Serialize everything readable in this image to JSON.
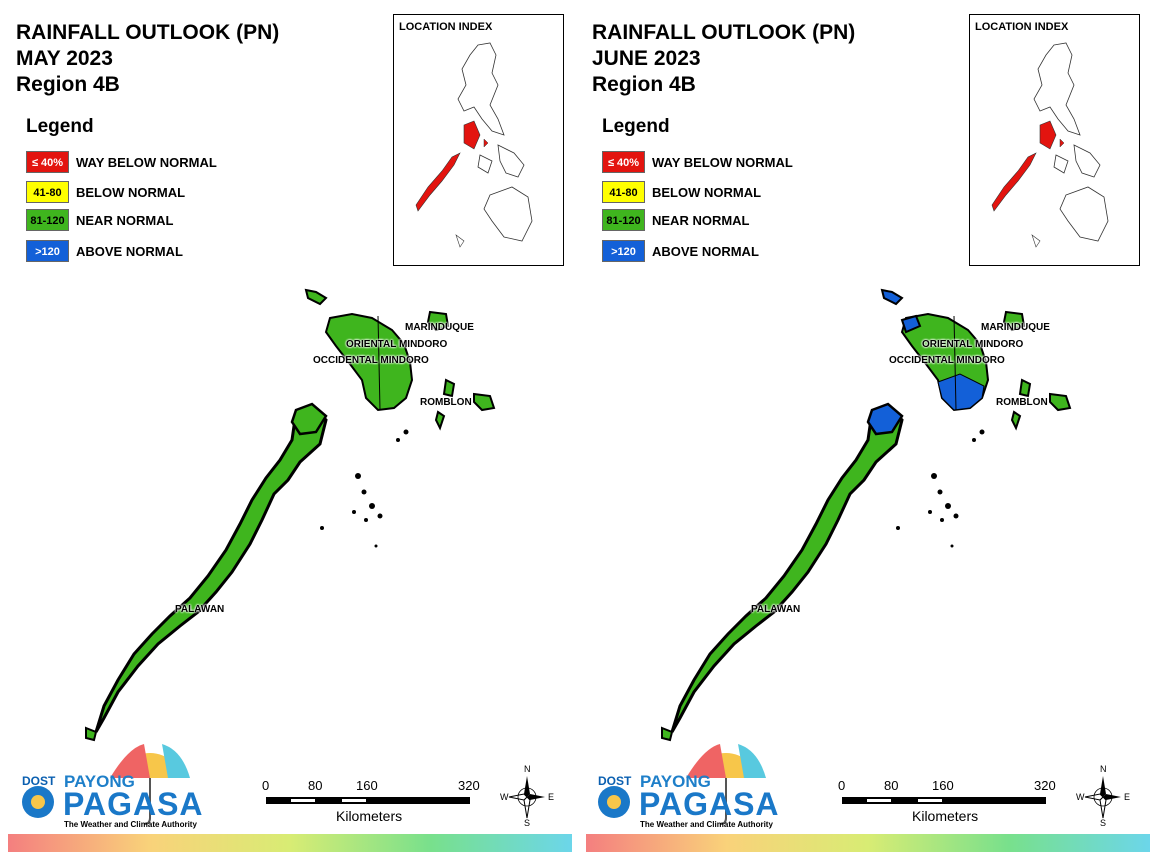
{
  "panels": [
    {
      "title_lines": [
        "RAINFALL OUTLOOK (PN)",
        "MAY 2023",
        "Region 4B"
      ],
      "legend_title": "Legend",
      "legend": [
        {
          "swatch": "≤ 40%",
          "label": "WAY BELOW NORMAL",
          "color": "#e3140f",
          "text_color": "#ffffff"
        },
        {
          "swatch": "41-80",
          "label": "BELOW NORMAL",
          "color": "#ffff00",
          "text_color": "#000000"
        },
        {
          "swatch": "81-120",
          "label": "NEAR NORMAL",
          "color": "#3fb51e",
          "text_color": "#000000"
        },
        {
          "swatch": ">120",
          "label": "ABOVE NORMAL",
          "color": "#1360d8",
          "text_color": "#ffffff"
        }
      ],
      "location_index": "LOCATION INDEX",
      "places": [
        "MARINDUQUE",
        "ORIENTAL MINDORO",
        "OCCIDENTAL MINDORO",
        "ROMBLON",
        "PALAWAN"
      ],
      "scale_values": [
        "0",
        "80",
        "160",
        "320"
      ],
      "scale_unit": "Kilometers",
      "compass": {
        "n": "N",
        "e": "E",
        "s": "S",
        "w": "W"
      },
      "logo": {
        "dost": "DOST",
        "payong": "PAYONG",
        "pagasa": "PAGASA",
        "tagline": "The Weather and Climate Authority"
      }
    },
    {
      "title_lines": [
        "RAINFALL OUTLOOK (PN)",
        "JUNE 2023",
        "Region 4B"
      ],
      "legend_title": "Legend",
      "legend": [
        {
          "swatch": "≤ 40%",
          "label": "WAY BELOW NORMAL",
          "color": "#e3140f",
          "text_color": "#ffffff"
        },
        {
          "swatch": "41-80",
          "label": "BELOW NORMAL",
          "color": "#ffff00",
          "text_color": "#000000"
        },
        {
          "swatch": "81-120",
          "label": "NEAR NORMAL",
          "color": "#3fb51e",
          "text_color": "#000000"
        },
        {
          "swatch": ">120",
          "label": "ABOVE NORMAL",
          "color": "#1360d8",
          "text_color": "#ffffff"
        }
      ],
      "location_index": "LOCATION INDEX",
      "places": [
        "MARINDUQUE",
        "ORIENTAL MINDORO",
        "OCCIDENTAL MINDORO",
        "ROMBLON",
        "PALAWAN"
      ],
      "scale_values": [
        "0",
        "80",
        "160",
        "320"
      ],
      "scale_unit": "Kilometers",
      "compass": {
        "n": "N",
        "e": "E",
        "s": "S",
        "w": "W"
      },
      "logo": {
        "dost": "DOST",
        "payong": "PAYONG",
        "pagasa": "PAGASA",
        "tagline": "The Weather and Climate Authority"
      }
    }
  ]
}
